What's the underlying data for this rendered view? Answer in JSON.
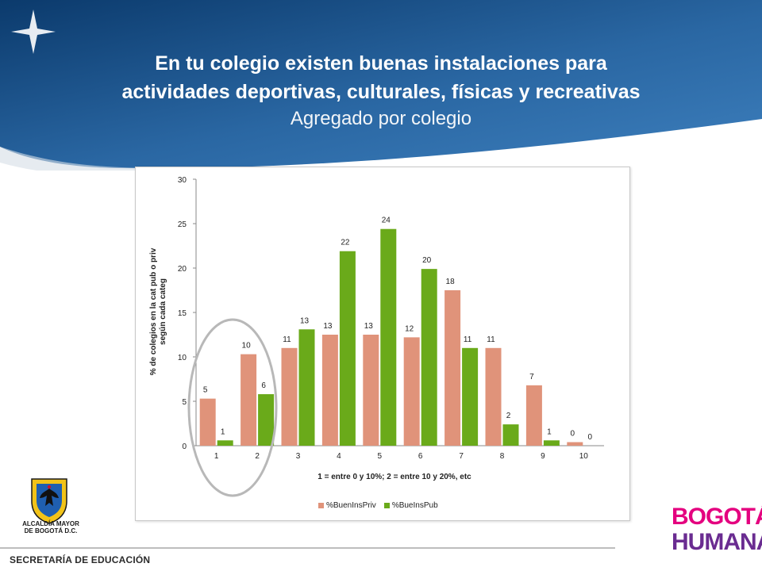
{
  "slide": {
    "title_line1": "En tu colegio existen buenas instalaciones para",
    "title_line2": "actividades deportivas, culturales, físicas y recreativas",
    "subtitle": "Agregado por colegio"
  },
  "logos": {
    "crest_label_line1": "ALCALDÍA MAYOR",
    "crest_label_line2": "DE BOGOTÁ D.C.",
    "brand_line1": "BOGOTÁ",
    "brand_line2": "HUMANA"
  },
  "footer": {
    "text": "SECRETARÍA DE EDUCACIÓN"
  },
  "colors": {
    "banner_dark": "#0d3f73",
    "banner_light": "#2f6fab",
    "priv": "#e0937a",
    "pub": "#6aaa1a",
    "circle": "#b8b8b8"
  },
  "chart_data": {
    "type": "bar",
    "categories": [
      "1",
      "2",
      "3",
      "4",
      "5",
      "6",
      "7",
      "8",
      "9",
      "10"
    ],
    "series": [
      {
        "name": "%BuenInsPriv",
        "values": [
          5.3,
          10.3,
          11.0,
          12.5,
          12.5,
          12.2,
          17.5,
          11.0,
          6.8,
          0.4
        ],
        "labels": [
          "5",
          "10",
          "11",
          "13",
          "13",
          "12",
          "18",
          "11",
          "7",
          "0"
        ],
        "color": "#e0937a"
      },
      {
        "name": "%BueInsPub",
        "values": [
          0.6,
          5.8,
          13.1,
          21.9,
          24.4,
          19.9,
          11.0,
          2.4,
          0.6,
          0.0
        ],
        "labels": [
          "1",
          "6",
          "13",
          "22",
          "24",
          "20",
          "11",
          "2",
          "1",
          "0"
        ],
        "color": "#6aaa1a"
      }
    ],
    "ylim": [
      0,
      30
    ],
    "yticks": [
      0,
      5,
      10,
      15,
      20,
      25,
      30
    ],
    "xlabel": "1 = entre 0 y 10%; 2 = entre 10 y 20%, etc",
    "ylabel_line1": "% de colegios en la cat pub o priv",
    "ylabel_line2": "según cada categ",
    "legend_position": "bottom",
    "grid": false,
    "annotation": "circle around categories 1 and 2"
  }
}
